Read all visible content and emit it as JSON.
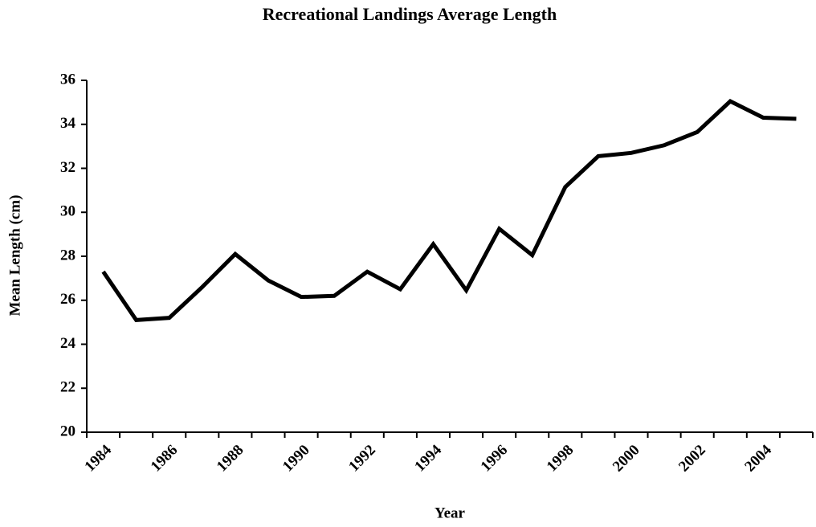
{
  "chart_data": {
    "type": "line",
    "title": "Recreational Landings Average Length",
    "x_label": "Year",
    "y_label": "Mean Length (cm)",
    "categories": [
      "1984",
      null,
      "1986",
      null,
      "1988",
      null,
      "1990",
      null,
      "1992",
      null,
      "1994",
      null,
      "1996",
      null,
      "1998",
      null,
      "2000",
      null,
      "2002",
      null,
      "2004",
      null
    ],
    "series": [
      {
        "name": "Mean Length",
        "color": "#000000",
        "values": [
          27.3,
          25.1,
          25.2,
          26.6,
          28.1,
          26.9,
          26.15,
          26.2,
          27.3,
          26.5,
          28.55,
          26.45,
          29.25,
          28.05,
          31.15,
          32.55,
          32.7,
          33.05,
          33.65,
          35.05,
          34.3,
          34.25
        ]
      }
    ],
    "ylim": [
      20,
      36
    ],
    "yticks": [
      20,
      22,
      24,
      26,
      28,
      30,
      32,
      34,
      36
    ],
    "grid": false
  }
}
